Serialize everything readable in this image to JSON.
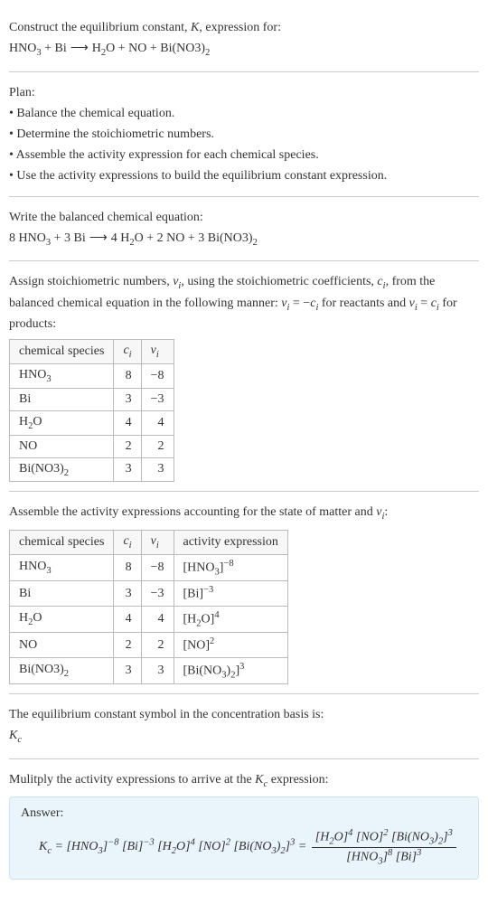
{
  "intro": {
    "line1": "Construct the equilibrium constant, K, expression for:",
    "equation": "HNO₃ + Bi ⟶ H₂O + NO + Bi(NO3)₂"
  },
  "plan": {
    "title": "Plan:",
    "items": [
      "• Balance the chemical equation.",
      "• Determine the stoichiometric numbers.",
      "• Assemble the activity expression for each chemical species.",
      "• Use the activity expressions to build the equilibrium constant expression."
    ]
  },
  "balanced": {
    "title": "Write the balanced chemical equation:",
    "equation": "8 HNO₃ + 3 Bi ⟶ 4 H₂O + 2 NO + 3 Bi(NO3)₂"
  },
  "assign": {
    "text1": "Assign stoichiometric numbers, νᵢ, using the stoichiometric coefficients, cᵢ, from the balanced chemical equation in the following manner: νᵢ = −cᵢ for reactants and νᵢ = cᵢ for products:",
    "headers": [
      "chemical species",
      "cᵢ",
      "νᵢ"
    ],
    "rows": [
      [
        "HNO₃",
        "8",
        "−8"
      ],
      [
        "Bi",
        "3",
        "−3"
      ],
      [
        "H₂O",
        "4",
        "4"
      ],
      [
        "NO",
        "2",
        "2"
      ],
      [
        "Bi(NO3)₂",
        "3",
        "3"
      ]
    ]
  },
  "activity": {
    "title": "Assemble the activity expressions accounting for the state of matter and νᵢ:",
    "headers": [
      "chemical species",
      "cᵢ",
      "νᵢ",
      "activity expression"
    ],
    "rows": [
      [
        "HNO₃",
        "8",
        "−8",
        "[HNO₃]⁻⁸"
      ],
      [
        "Bi",
        "3",
        "−3",
        "[Bi]⁻³"
      ],
      [
        "H₂O",
        "4",
        "4",
        "[H₂O]⁴"
      ],
      [
        "NO",
        "2",
        "2",
        "[NO]²"
      ],
      [
        "Bi(NO3)₂",
        "3",
        "3",
        "[Bi(NO₃)₂]³"
      ]
    ]
  },
  "symbol": {
    "line1": "The equilibrium constant symbol in the concentration basis is:",
    "line2": "K𝒸"
  },
  "multiply": {
    "title": "Mulitply the activity expressions to arrive at the K𝒸 expression:"
  },
  "answer": {
    "title": "Answer:",
    "lhs": "K𝒸 = [HNO₃]⁻⁸ [Bi]⁻³ [H₂O]⁴ [NO]² [Bi(NO₃)₂]³ = ",
    "frac_num": "[H₂O]⁴ [NO]² [Bi(NO₃)₂]³",
    "frac_den": "[HNO₃]⁸ [Bi]³"
  },
  "colors": {
    "border": "#cccccc",
    "table_border": "#bbbbbb",
    "th_bg": "#f7f7f7",
    "answer_bg": "#eaf4fb",
    "answer_border": "#cfe3f0",
    "text": "#333333"
  },
  "fonts": {
    "body_family": "Georgia, Times New Roman, serif",
    "body_size_pt": 11
  }
}
